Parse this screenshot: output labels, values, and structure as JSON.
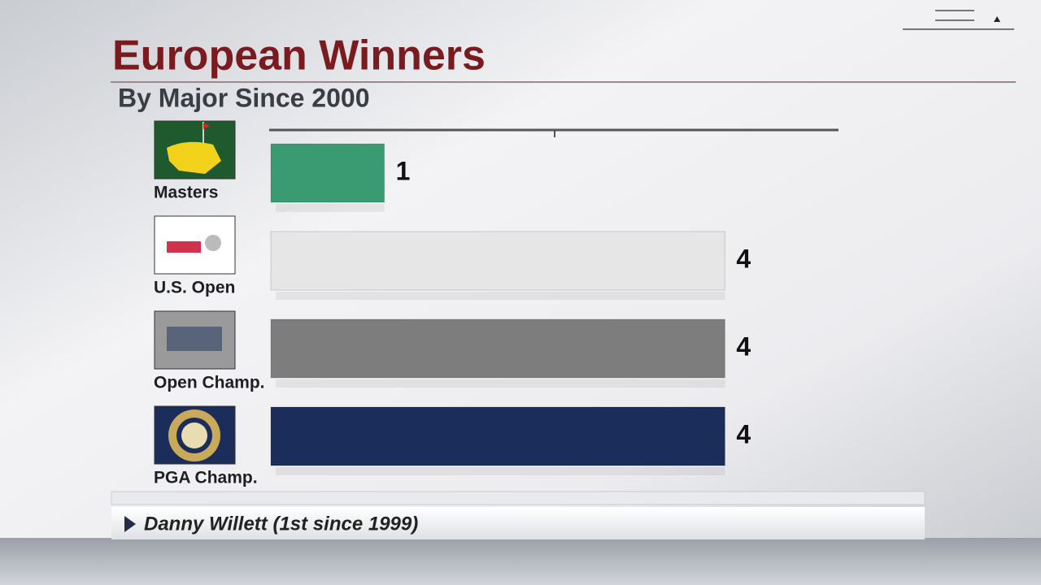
{
  "chart_data": {
    "type": "hbar",
    "title": "European Winners",
    "subtitle": "By Major Since 2000",
    "categories": [
      "Masters",
      "U.S. Open",
      "Open Champ.",
      "PGA Champ."
    ],
    "values": [
      1,
      4,
      4,
      4
    ],
    "colors": [
      "#3a9a72",
      "#e6e6e6",
      "#7d7d7d",
      "#1b2d5a"
    ],
    "xlim": [
      0,
      5
    ],
    "annotation": "Danny Willett (1st since 1999)"
  }
}
